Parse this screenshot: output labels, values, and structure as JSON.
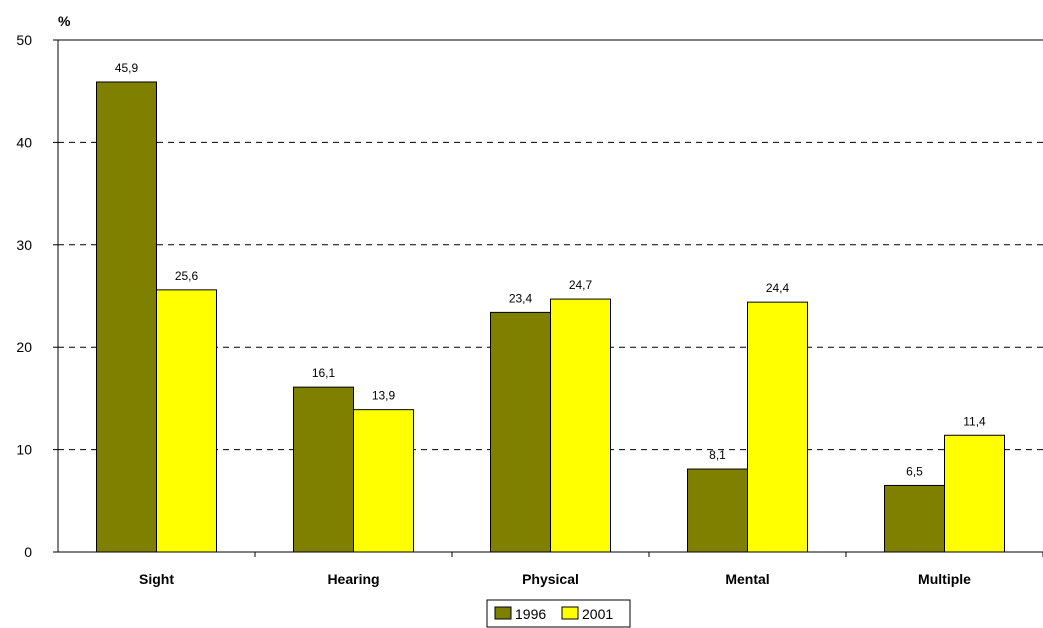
{
  "chart_data": {
    "type": "bar",
    "ylabel": "%",
    "ylim": [
      0,
      50
    ],
    "yticks": [
      0,
      10,
      20,
      30,
      40,
      50
    ],
    "grid": "horizontal dashed",
    "legend_position": "bottom-center",
    "categories": [
      "Sight",
      "Hearing",
      "Physical",
      "Mental",
      "Multiple"
    ],
    "series": [
      {
        "name": "1996",
        "color": "#808000",
        "values": [
          45.9,
          16.1,
          23.4,
          8.1,
          6.5
        ],
        "labels": [
          "45,9",
          "16,1",
          "23,4",
          "8,1",
          "6,5"
        ]
      },
      {
        "name": "2001",
        "color": "#FFFF00",
        "values": [
          25.6,
          13.9,
          24.7,
          24.4,
          11.4
        ],
        "labels": [
          "25,6",
          "13,9",
          "24,7",
          "24,4",
          "11,4"
        ]
      }
    ]
  }
}
